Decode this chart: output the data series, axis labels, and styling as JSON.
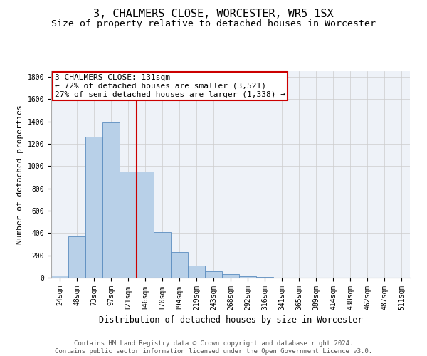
{
  "title": "3, CHALMERS CLOSE, WORCESTER, WR5 1SX",
  "subtitle": "Size of property relative to detached houses in Worcester",
  "xlabel": "Distribution of detached houses by size in Worcester",
  "ylabel": "Number of detached properties",
  "footer_line1": "Contains HM Land Registry data © Crown copyright and database right 2024.",
  "footer_line2": "Contains public sector information licensed under the Open Government Licence v3.0.",
  "categories": [
    "24sqm",
    "48sqm",
    "73sqm",
    "97sqm",
    "121sqm",
    "146sqm",
    "170sqm",
    "194sqm",
    "219sqm",
    "243sqm",
    "268sqm",
    "292sqm",
    "316sqm",
    "341sqm",
    "365sqm",
    "389sqm",
    "414sqm",
    "438sqm",
    "462sqm",
    "487sqm",
    "511sqm"
  ],
  "values": [
    20,
    370,
    1260,
    1390,
    950,
    950,
    410,
    230,
    110,
    60,
    35,
    15,
    8,
    3,
    2,
    1,
    1,
    0,
    0,
    0,
    0
  ],
  "bar_color": "#b8d0e8",
  "bar_edge_color": "#5b8dc0",
  "property_line_x": 4.5,
  "annotation_title": "3 CHALMERS CLOSE: 131sqm",
  "annotation_line1": "← 72% of detached houses are smaller (3,521)",
  "annotation_line2": "27% of semi-detached houses are larger (1,338) →",
  "annotation_box_color": "#ffffff",
  "annotation_box_edge_color": "#cc0000",
  "vline_color": "#cc0000",
  "ylim": [
    0,
    1850
  ],
  "yticks": [
    0,
    200,
    400,
    600,
    800,
    1000,
    1200,
    1400,
    1600,
    1800
  ],
  "title_fontsize": 11,
  "subtitle_fontsize": 9.5,
  "xlabel_fontsize": 8.5,
  "ylabel_fontsize": 8,
  "tick_fontsize": 7,
  "footer_fontsize": 6.5,
  "annotation_fontsize": 8
}
